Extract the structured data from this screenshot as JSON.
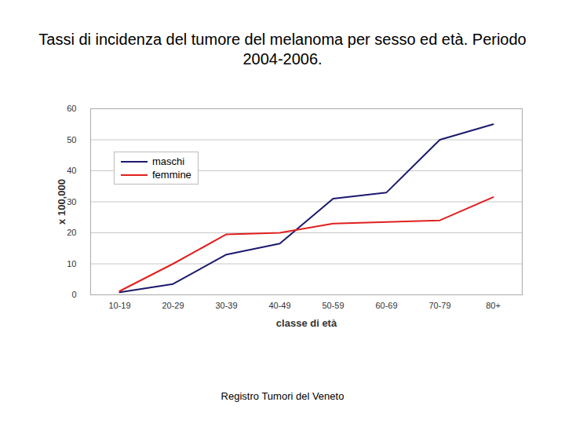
{
  "chart_data": {
    "type": "line",
    "title": "Tassi di incidenza del tumore del melanoma per sesso ed età. Periodo 2004-2006.",
    "x_label": "classe di età",
    "y_label": "x 100,000",
    "caption": "Registro Tumori del Veneto",
    "categories": [
      "10-19",
      "20-29",
      "30-39",
      "40-49",
      "50-59",
      "60-69",
      "70-79",
      "80+"
    ],
    "series": [
      {
        "name": "maschi",
        "color": "#1a1a6e",
        "values": [
          0.8,
          3.5,
          13,
          16.5,
          31,
          33,
          50,
          55
        ]
      },
      {
        "name": "femmine",
        "color": "#e02020",
        "values": [
          1.2,
          10,
          19.5,
          20,
          23,
          23.5,
          24,
          31.5
        ]
      }
    ],
    "ylim": [
      0,
      60
    ],
    "yticks": [
      0,
      10,
      20,
      30,
      40,
      50,
      60
    ],
    "grid": true,
    "legend": "upper left"
  }
}
